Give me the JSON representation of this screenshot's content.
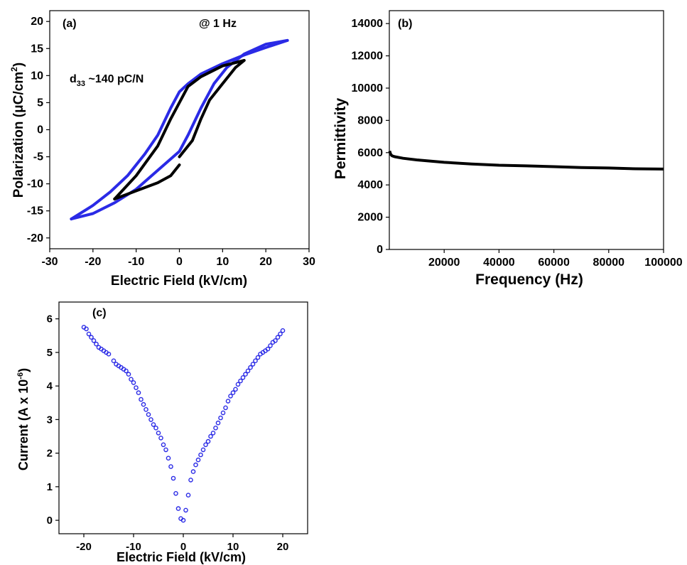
{
  "chart_data": [
    {
      "panel": "(a)",
      "type": "line",
      "annotation": "@ 1 Hz",
      "d33_main": "d",
      "d33_sub": "33",
      "d33_value": " ~140 pC/N",
      "xlabel": "Electric Field (kV/cm)",
      "ylabel_prefix": "Polarization (",
      "ylabel_mu": "μ",
      "ylabel_unit": "C/cm",
      "ylabel_sup": "2",
      "ylabel_suffix": ")",
      "xlim": [
        -30,
        30
      ],
      "ylim": [
        -22,
        22
      ],
      "xticks": [
        -30,
        -20,
        -10,
        0,
        10,
        20,
        30
      ],
      "yticks": [
        -20,
        -15,
        -10,
        -5,
        0,
        5,
        10,
        15,
        20
      ],
      "grid": false,
      "series": [
        {
          "color": "#2a2ae6",
          "loop": {
            "ascending": [
              [
                -25,
                -16.5
              ],
              [
                -20,
                -15.5
              ],
              [
                -15,
                -13.5
              ],
              [
                -10,
                -11
              ],
              [
                -5,
                -7.5
              ],
              [
                0,
                -4
              ],
              [
                2,
                -1
              ],
              [
                5,
                4
              ],
              [
                8,
                8.5
              ],
              [
                11,
                11.5
              ],
              [
                15,
                14
              ],
              [
                20,
                15.8
              ],
              [
                25,
                16.5
              ]
            ],
            "descending": [
              [
                25,
                16.5
              ],
              [
                20,
                15.2
              ],
              [
                15,
                13.8
              ],
              [
                10,
                12.2
              ],
              [
                5,
                10.3
              ],
              [
                2,
                8.5
              ],
              [
                0,
                7
              ],
              [
                -2,
                4
              ],
              [
                -5,
                -1
              ],
              [
                -8,
                -4.5
              ],
              [
                -12,
                -8.5
              ],
              [
                -16,
                -11.5
              ],
              [
                -20,
                -14
              ],
              [
                -25,
                -16.5
              ]
            ]
          }
        },
        {
          "color": "#000000",
          "loop": {
            "ascending": [
              [
                -15,
                -12.8
              ],
              [
                -10,
                -11.3
              ],
              [
                -5,
                -9.8
              ],
              [
                -2,
                -8.5
              ],
              [
                0,
                -6.5
              ]
            ],
            "descending": [
              [
                -15,
                -12.8
              ],
              [
                -10,
                -8.5
              ],
              [
                -5,
                -3
              ],
              [
                -2,
                2
              ],
              [
                0,
                5
              ],
              [
                2,
                8
              ],
              [
                5,
                9.8
              ],
              [
                10,
                11.8
              ],
              [
                15,
                12.8
              ],
              [
                13,
                11.5
              ],
              [
                10,
                8.5
              ],
              [
                7,
                5.5
              ],
              [
                5,
                2
              ],
              [
                3,
                -2
              ],
              [
                0,
                -5
              ]
            ]
          }
        }
      ]
    },
    {
      "panel": "(b)",
      "type": "line",
      "xlabel": "Frequency (Hz)",
      "ylabel": "Permittivity",
      "xlim": [
        0,
        100000
      ],
      "ylim": [
        0,
        14800
      ],
      "xticks": [
        20000,
        40000,
        60000,
        80000,
        100000
      ],
      "yticks": [
        0,
        2000,
        4000,
        6000,
        8000,
        10000,
        12000,
        14000
      ],
      "grid": false,
      "series": [
        {
          "color": "#000000",
          "x": [
            100,
            500,
            1000,
            2000,
            5000,
            10000,
            20000,
            30000,
            40000,
            50000,
            60000,
            70000,
            80000,
            90000,
            100000
          ],
          "y": [
            6100,
            5900,
            5800,
            5750,
            5650,
            5550,
            5400,
            5300,
            5220,
            5180,
            5130,
            5080,
            5050,
            5000,
            4980
          ]
        }
      ]
    },
    {
      "panel": "(c)",
      "type": "scatter",
      "xlabel": "Electric Field (kV/cm)",
      "ylabel_prefix": "Current (A x 10",
      "ylabel_sup": "-6",
      "ylabel_suffix": ")",
      "xlim": [
        -25,
        25
      ],
      "ylim": [
        -0.4,
        6.5
      ],
      "xticks": [
        -20,
        -10,
        0,
        10,
        20
      ],
      "yticks": [
        0,
        1,
        2,
        3,
        4,
        5,
        6
      ],
      "grid": false,
      "series": [
        {
          "color": "#2a2ae6",
          "x": [
            -20,
            -19.5,
            -19,
            -18.5,
            -18,
            -17.5,
            -17,
            -16.5,
            -16,
            -15.5,
            -15,
            -14,
            -13.5,
            -13,
            -12.5,
            -12,
            -11.5,
            -11,
            -10.5,
            -10,
            -9.5,
            -9,
            -8.5,
            -8,
            -7.5,
            -7,
            -6.5,
            -6,
            -5.5,
            -5,
            -4.5,
            -4,
            -3.5,
            -3,
            -2.5,
            -2,
            -1.5,
            -1,
            -0.5,
            0,
            0.5,
            1,
            1.5,
            2,
            2.5,
            3,
            3.5,
            4,
            4.5,
            5,
            5.5,
            6,
            6.5,
            7,
            7.5,
            8,
            8.5,
            9,
            9.5,
            10,
            10.5,
            11,
            11.5,
            12,
            12.5,
            13,
            13.5,
            14,
            14.5,
            15,
            15.5,
            16,
            16.5,
            17,
            17.5,
            18,
            18.5,
            19,
            19.5,
            20
          ],
          "y": [
            5.75,
            5.7,
            5.55,
            5.45,
            5.35,
            5.25,
            5.15,
            5.1,
            5.05,
            5.0,
            4.95,
            4.75,
            4.65,
            4.6,
            4.55,
            4.5,
            4.45,
            4.35,
            4.2,
            4.1,
            3.95,
            3.8,
            3.6,
            3.45,
            3.3,
            3.15,
            3.0,
            2.85,
            2.75,
            2.6,
            2.45,
            2.25,
            2.1,
            1.85,
            1.6,
            1.25,
            0.8,
            0.35,
            0.05,
            0.0,
            0.3,
            0.75,
            1.2,
            1.45,
            1.65,
            1.8,
            1.95,
            2.1,
            2.25,
            2.35,
            2.5,
            2.6,
            2.75,
            2.9,
            3.05,
            3.2,
            3.35,
            3.55,
            3.7,
            3.8,
            3.9,
            4.05,
            4.15,
            4.25,
            4.35,
            4.45,
            4.55,
            4.65,
            4.75,
            4.85,
            4.95,
            5.0,
            5.05,
            5.1,
            5.2,
            5.3,
            5.35,
            5.45,
            5.55,
            5.65
          ]
        }
      ]
    }
  ]
}
